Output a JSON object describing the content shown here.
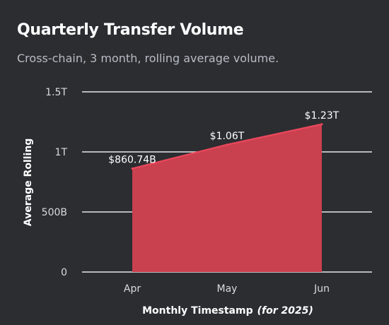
{
  "chart_data": {
    "type": "area",
    "title": "Quarterly Transfer Volume",
    "subtitle": "Cross-chain, 3 month, rolling average volume.",
    "categories": [
      "Apr",
      "May",
      "Jun"
    ],
    "values": [
      860740000000,
      1060000000000,
      1230000000000
    ],
    "data_labels": [
      "$860.74B",
      "$1.06T",
      "$1.23T"
    ],
    "ylim": [
      0,
      1500000000000
    ],
    "yticks": [
      0,
      500000000000,
      1000000000000,
      1500000000000
    ],
    "ytick_labels": [
      "0",
      "500B",
      "1T",
      "1.5T"
    ],
    "ylabel": "Average Rolling",
    "xlabel_main": "Monthly Timestamp",
    "xlabel_note": "(for 2025)",
    "grid": true,
    "legend": "none",
    "colors": {
      "fill": "#c9404f",
      "line": "#e8475a",
      "grid": "#e6e7ea",
      "background": "#2b2d31"
    }
  }
}
